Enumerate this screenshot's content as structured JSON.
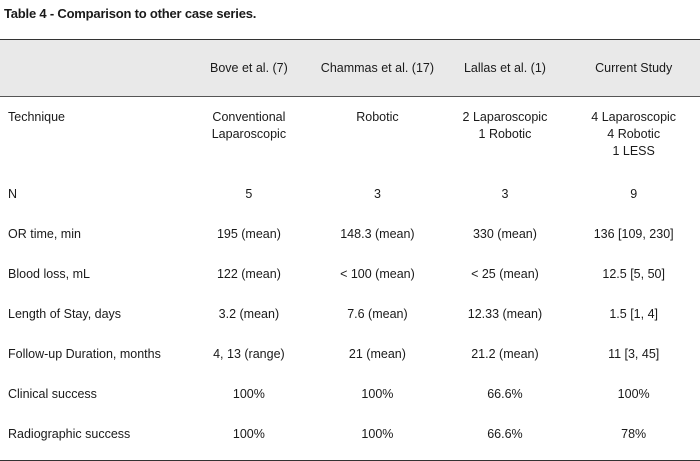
{
  "caption": "Table 4 - Comparison to other case series.",
  "columns": [
    "",
    "Bove et al. (7)",
    "Chammas et al. (17)",
    "Lallas et al. (1)",
    "Current Study"
  ],
  "technique": {
    "label": "Technique",
    "values": [
      [
        "Conventional",
        "Laparoscopic"
      ],
      [
        "Robotic"
      ],
      [
        "2 Laparoscopic",
        "1 Robotic"
      ],
      [
        "4 Laparoscopic",
        "4 Robotic",
        "1 LESS"
      ]
    ]
  },
  "rows": [
    {
      "label": "N",
      "values": [
        "5",
        "3",
        "3",
        "9"
      ]
    },
    {
      "label": "OR time, min",
      "values": [
        "195 (mean)",
        "148.3 (mean)",
        "330 (mean)",
        "136 [109, 230]"
      ]
    },
    {
      "label": "Blood loss, mL",
      "values": [
        "122 (mean)",
        "< 100 (mean)",
        "< 25 (mean)",
        "12.5 [5, 50]"
      ]
    },
    {
      "label": "Length of Stay, days",
      "values": [
        "3.2 (mean)",
        "7.6 (mean)",
        "12.33 (mean)",
        "1.5 [1, 4]"
      ]
    },
    {
      "label": "Follow-up Duration, months",
      "values": [
        "4, 13 (range)",
        "21 (mean)",
        "21.2 (mean)",
        "11 [3, 45]"
      ]
    },
    {
      "label": "Clinical success",
      "values": [
        "100%",
        "100%",
        "66.6%",
        "100%"
      ]
    },
    {
      "label": "Radiographic success",
      "values": [
        "100%",
        "100%",
        "66.6%",
        "78%"
      ]
    }
  ]
}
